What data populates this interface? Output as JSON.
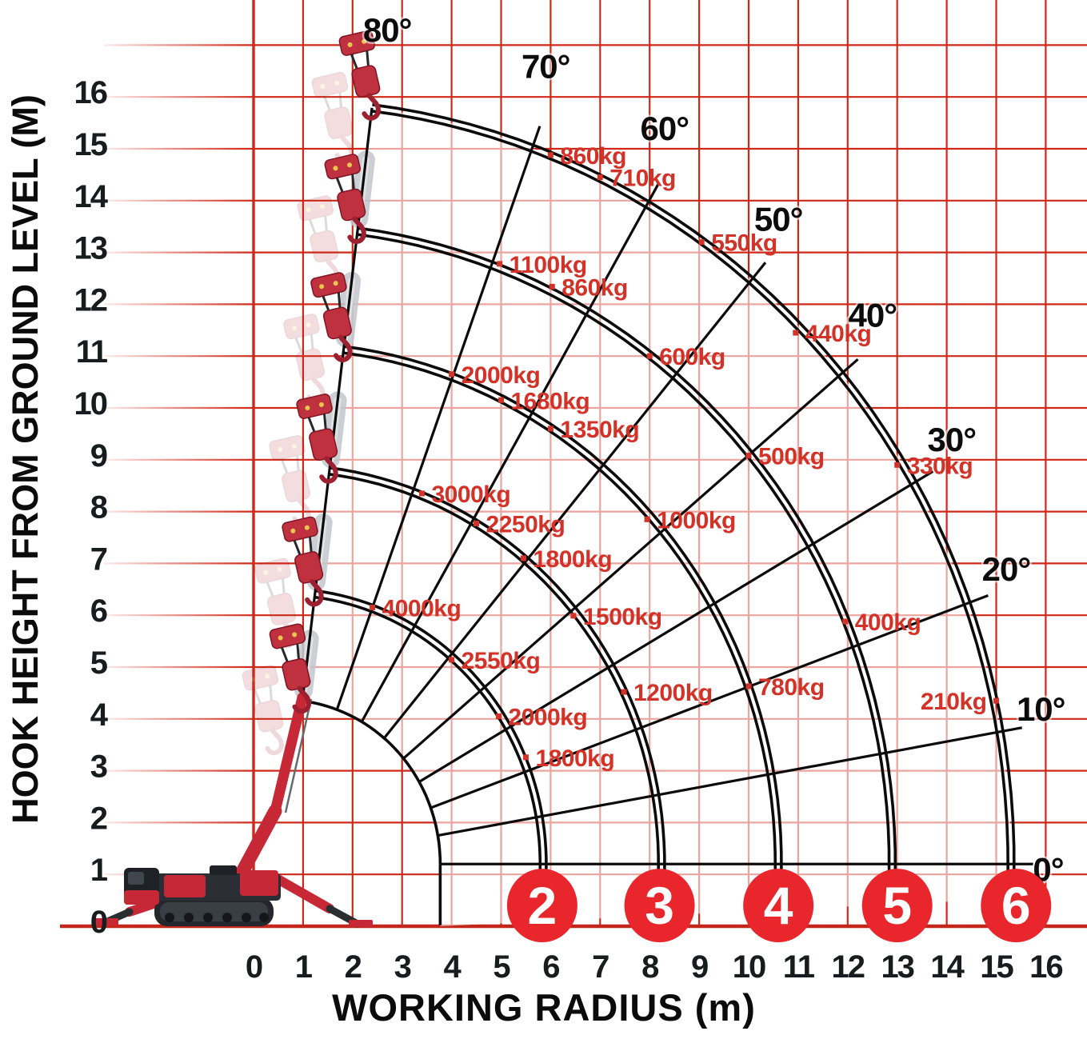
{
  "chart_data": {
    "type": "line",
    "subtype": "crane-working-radius-load-envelope",
    "title": "",
    "xlabel": "WORKING RADIUS (m)",
    "ylabel": "HOOK HEIGHT FROM GROUND LEVEL (M)",
    "x_ticks": [
      0,
      1,
      2,
      3,
      4,
      5,
      6,
      7,
      8,
      9,
      10,
      11,
      12,
      13,
      14,
      15,
      16
    ],
    "y_ticks": [
      0,
      1,
      2,
      3,
      4,
      5,
      6,
      7,
      8,
      9,
      10,
      11,
      12,
      13,
      14,
      15,
      16
    ],
    "xlim": [
      -3.25,
      16.85
    ],
    "ylim": [
      -2.25,
      17.85
    ],
    "grid": true,
    "pivot": {
      "x": 0.6,
      "y": 1.2
    },
    "boom_angle_lines_deg": [
      0,
      10,
      20,
      30,
      40,
      50,
      60,
      70,
      80
    ],
    "stage_radii_m": [
      3.17,
      5.25,
      7.64,
      10.0,
      12.3,
      14.7
    ],
    "stage_markers": [
      {
        "label": "2",
        "x": 5.83,
        "y": 0.4
      },
      {
        "label": "3",
        "x": 8.2,
        "y": 0.4
      },
      {
        "label": "4",
        "x": 10.6,
        "y": 0.4
      },
      {
        "label": "5",
        "x": 13.0,
        "y": 0.4
      },
      {
        "label": "6",
        "x": 15.4,
        "y": 0.4
      }
    ],
    "angle_labels": [
      {
        "text": "80°",
        "x": 2.7,
        "y": 17.3
      },
      {
        "text": "70°",
        "x": 5.9,
        "y": 16.6
      },
      {
        "text": "60°",
        "x": 8.3,
        "y": 15.4
      },
      {
        "text": "50°",
        "x": 10.6,
        "y": 13.65
      },
      {
        "text": "40°",
        "x": 12.5,
        "y": 11.8
      },
      {
        "text": "30°",
        "x": 14.1,
        "y": 9.4
      },
      {
        "text": "20°",
        "x": 15.2,
        "y": 6.9
      },
      {
        "text": "10°",
        "x": 15.9,
        "y": 4.2
      },
      {
        "text": "0°",
        "x": 16.05,
        "y": 1.1
      }
    ],
    "load_labels": [
      {
        "text": "860kg",
        "x": 6.0,
        "y": 14.88,
        "side": "right"
      },
      {
        "text": "710kg",
        "x": 7.0,
        "y": 14.45,
        "side": "right"
      },
      {
        "text": "550kg",
        "x": 9.05,
        "y": 13.2,
        "side": "right"
      },
      {
        "text": "440kg",
        "x": 10.95,
        "y": 11.45,
        "side": "right"
      },
      {
        "text": "330kg",
        "x": 13.0,
        "y": 8.9,
        "side": "right"
      },
      {
        "text": "210kg",
        "x": 15.0,
        "y": 4.35,
        "side": "left"
      },
      {
        "text": "1100kg",
        "x": 4.97,
        "y": 12.78,
        "side": "right"
      },
      {
        "text": "860kg",
        "x": 6.03,
        "y": 12.34,
        "side": "right"
      },
      {
        "text": "600kg",
        "x": 8.0,
        "y": 11.0,
        "side": "right"
      },
      {
        "text": "500kg",
        "x": 10.0,
        "y": 9.08,
        "side": "right"
      },
      {
        "text": "400kg",
        "x": 11.95,
        "y": 5.88,
        "side": "right"
      },
      {
        "text": "2000kg",
        "x": 4.0,
        "y": 10.65,
        "side": "right"
      },
      {
        "text": "1680kg",
        "x": 5.0,
        "y": 10.15,
        "side": "right"
      },
      {
        "text": "1350kg",
        "x": 6.0,
        "y": 9.6,
        "side": "right"
      },
      {
        "text": "1000kg",
        "x": 7.95,
        "y": 7.85,
        "side": "right"
      },
      {
        "text": "780kg",
        "x": 10.0,
        "y": 4.63,
        "side": "right"
      },
      {
        "text": "3000kg",
        "x": 3.4,
        "y": 8.35,
        "side": "right"
      },
      {
        "text": "2250kg",
        "x": 4.5,
        "y": 7.77,
        "side": "right"
      },
      {
        "text": "1800kg",
        "x": 5.45,
        "y": 7.1,
        "side": "right"
      },
      {
        "text": "1500kg",
        "x": 6.46,
        "y": 5.99,
        "side": "right"
      },
      {
        "text": "1200kg",
        "x": 7.48,
        "y": 4.52,
        "side": "right"
      },
      {
        "text": "4000kg",
        "x": 2.4,
        "y": 6.15,
        "side": "right"
      },
      {
        "text": "2550kg",
        "x": 4.0,
        "y": 5.14,
        "side": "right"
      },
      {
        "text": "2000kg",
        "x": 4.95,
        "y": 4.05,
        "side": "right"
      },
      {
        "text": "1800kg",
        "x": 5.5,
        "y": 3.26,
        "side": "right"
      }
    ],
    "series": [
      {
        "name": "stage 2",
        "points": [
          {
            "angle_deg": 70,
            "kg": 4000
          },
          {
            "angle_deg": 50,
            "kg": 2550
          },
          {
            "angle_deg": 33,
            "kg": 2000
          },
          {
            "angle_deg": 23,
            "kg": 1800
          }
        ]
      },
      {
        "name": "stage 3",
        "points": [
          {
            "angle_deg": 69,
            "kg": 3000
          },
          {
            "angle_deg": 59,
            "kg": 2250
          },
          {
            "angle_deg": 51,
            "kg": 1800
          },
          {
            "angle_deg": 39,
            "kg": 1500
          },
          {
            "angle_deg": 26,
            "kg": 1200
          }
        ]
      },
      {
        "name": "stage 4",
        "points": [
          {
            "angle_deg": 70,
            "kg": 2000
          },
          {
            "angle_deg": 64,
            "kg": 1680
          },
          {
            "angle_deg": 57,
            "kg": 1350
          },
          {
            "angle_deg": 42,
            "kg": 1000
          },
          {
            "angle_deg": 20,
            "kg": 780
          }
        ]
      },
      {
        "name": "stage 5",
        "points": [
          {
            "angle_deg": 69,
            "kg": 1100
          },
          {
            "angle_deg": 64,
            "kg": 860
          },
          {
            "angle_deg": 53,
            "kg": 600
          },
          {
            "angle_deg": 40,
            "kg": 500
          },
          {
            "angle_deg": 22,
            "kg": 400
          }
        ]
      },
      {
        "name": "stage 6",
        "points": [
          {
            "angle_deg": 69,
            "kg": 860
          },
          {
            "angle_deg": 64,
            "kg": 710
          },
          {
            "angle_deg": 55,
            "kg": 550
          },
          {
            "angle_deg": 45,
            "kg": 440
          },
          {
            "angle_deg": 32,
            "kg": 330
          },
          {
            "angle_deg": 12,
            "kg": 210
          }
        ]
      }
    ]
  },
  "colors": {
    "grid": "#d02818",
    "baseline": "#c3261b",
    "curve": "#0b0b0b",
    "load_label": "#d23227",
    "tick": "#171c1f",
    "circle_red": "#e9262c",
    "crane_red": "#c62836",
    "crane_dark": "#24272b",
    "boom_gray": "#c3c6cb"
  }
}
